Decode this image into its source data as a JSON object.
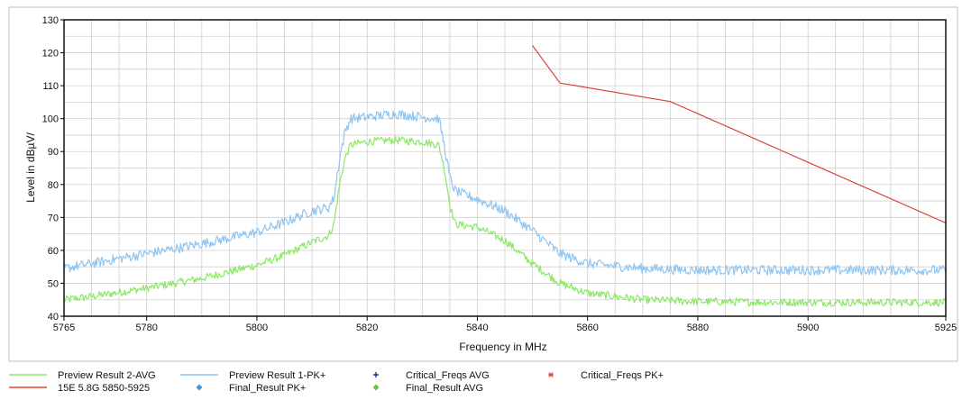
{
  "colors": {
    "avg": "#8ee66a",
    "pk": "#8ec5f2",
    "limit": "#d9443a",
    "crit_avg": "#1f3a8a",
    "crit_pk": "#d9443a",
    "final_pk": "#4a90d9",
    "final_avg": "#5fc94a",
    "grid": "#cfcfcf"
  },
  "chart_data": {
    "type": "line",
    "xlabel": "Frequency in MHz",
    "ylabel": "Level in dBµV/",
    "xlim": [
      5765,
      5925
    ],
    "ylim": [
      40,
      130
    ],
    "x_ticks": [
      5765,
      5780,
      5800,
      5820,
      5840,
      5860,
      5880,
      5900,
      5925
    ],
    "y_ticks": [
      40,
      50,
      60,
      70,
      80,
      90,
      100,
      110,
      120,
      130
    ],
    "grid": true,
    "legend_position": "bottom",
    "series": [
      {
        "name": "Preview Result 2-AVG",
        "style": "line",
        "x": [
          5765,
          5770,
          5780,
          5790,
          5800,
          5805,
          5810,
          5813,
          5814,
          5815,
          5816,
          5817,
          5820,
          5825,
          5830,
          5833,
          5834,
          5835,
          5836,
          5840,
          5845,
          5850,
          5855,
          5860,
          5870,
          5880,
          5890,
          5900,
          5910,
          5925
        ],
        "y": [
          45,
          46,
          48.5,
          51.5,
          55.5,
          58.5,
          62.5,
          64.5,
          68,
          80,
          88,
          92,
          93,
          93.5,
          93,
          92,
          85,
          74,
          68,
          67,
          63,
          56,
          50,
          47,
          45,
          44.5,
          44.3,
          44.2,
          44.2,
          44.2
        ]
      },
      {
        "name": "Preview Result 1-PK+",
        "style": "line",
        "x": [
          5765,
          5770,
          5780,
          5790,
          5800,
          5805,
          5810,
          5813,
          5814,
          5815,
          5816,
          5817,
          5820,
          5825,
          5830,
          5833,
          5834,
          5835,
          5836,
          5840,
          5845,
          5850,
          5855,
          5860,
          5870,
          5880,
          5890,
          5900,
          5910,
          5925
        ],
        "y": [
          54.5,
          56,
          59,
          62,
          65.5,
          68.5,
          72,
          73,
          76,
          88,
          96,
          100,
          100.5,
          101.5,
          100.5,
          100,
          92,
          82,
          78,
          75.5,
          72,
          66,
          59,
          56,
          54.5,
          54,
          54,
          54,
          54,
          54
        ]
      },
      {
        "name": "15E 5.8G 5850-5925",
        "style": "line",
        "x": [
          5850,
          5855,
          5875,
          5925
        ],
        "y": [
          122.2,
          110.8,
          105.2,
          68.3
        ]
      },
      {
        "name": "Critical_Freqs AVG",
        "style": "marker-plus",
        "x": [],
        "y": []
      },
      {
        "name": "Critical_Freqs PK+",
        "style": "marker-star",
        "x": [],
        "y": []
      },
      {
        "name": "Final_Result PK+",
        "style": "marker-diamond",
        "x": [],
        "y": []
      },
      {
        "name": "Final_Result AVG",
        "style": "marker-diamond",
        "x": [],
        "y": []
      }
    ]
  }
}
